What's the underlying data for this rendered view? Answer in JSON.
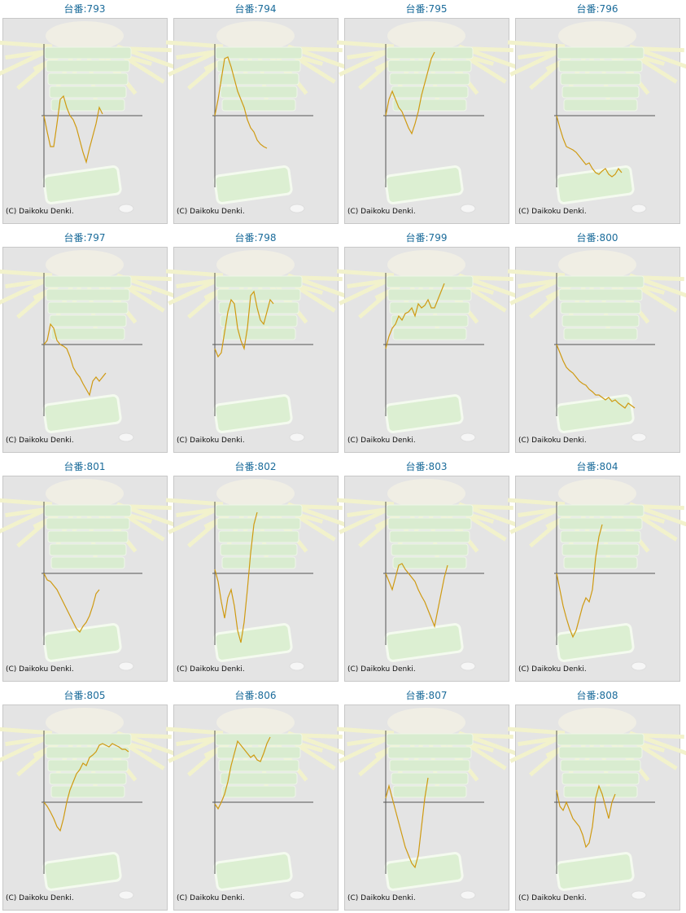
{
  "copyright": "(C) Daikoku Denki.",
  "chart_data": [
    {
      "type": "line",
      "title": "台番:793",
      "color": "#cf9a12",
      "ylim": [
        -88,
        88
      ],
      "values": [
        0,
        -20,
        -38,
        -38,
        -10,
        20,
        24,
        10,
        0,
        -5,
        -15,
        -30,
        -45,
        -57,
        -40,
        -25,
        -10,
        10,
        2
      ]
    },
    {
      "type": "line",
      "title": "台番:794",
      "color": "#cf9a12",
      "ylim": [
        -88,
        88
      ],
      "values": [
        0,
        20,
        45,
        70,
        72,
        60,
        45,
        30,
        20,
        10,
        -5,
        -15,
        -20,
        -30,
        -35,
        -38,
        -40
      ]
    },
    {
      "type": "line",
      "title": "台番:795",
      "color": "#cf9a12",
      "ylim": [
        -88,
        88
      ],
      "values": [
        0,
        20,
        30,
        20,
        10,
        5,
        -5,
        -15,
        -22,
        -10,
        5,
        25,
        40,
        55,
        70,
        78
      ]
    },
    {
      "type": "line",
      "title": "台番:796",
      "color": "#cf9a12",
      "ylim": [
        -88,
        88
      ],
      "values": [
        0,
        -15,
        -28,
        -38,
        -40,
        -42,
        -45,
        -50,
        -55,
        -60,
        -58,
        -65,
        -70,
        -72,
        -68,
        -65,
        -72,
        -75,
        -72,
        -65,
        -70
      ]
    },
    {
      "type": "line",
      "title": "台番:797",
      "color": "#cf9a12",
      "ylim": [
        -88,
        88
      ],
      "values": [
        0,
        5,
        25,
        20,
        5,
        0,
        -2,
        -5,
        -15,
        -28,
        -35,
        -40,
        -48,
        -55,
        -62,
        -45,
        -40,
        -45,
        -40,
        -35
      ]
    },
    {
      "type": "line",
      "title": "台番:798",
      "color": "#cf9a12",
      "ylim": [
        -88,
        88
      ],
      "values": [
        -5,
        -15,
        -10,
        15,
        40,
        55,
        50,
        20,
        5,
        -5,
        20,
        60,
        65,
        45,
        30,
        25,
        40,
        55,
        50
      ]
    },
    {
      "type": "line",
      "title": "台番:799",
      "color": "#cf9a12",
      "ylim": [
        -88,
        88
      ],
      "values": [
        -5,
        10,
        20,
        25,
        35,
        30,
        38,
        40,
        45,
        35,
        50,
        45,
        48,
        55,
        45,
        45,
        55,
        65,
        75
      ]
    },
    {
      "type": "line",
      "title": "台番:800",
      "color": "#cf9a12",
      "ylim": [
        -88,
        88
      ],
      "values": [
        0,
        -10,
        -20,
        -28,
        -32,
        -35,
        -40,
        -45,
        -48,
        -50,
        -55,
        -58,
        -62,
        -62,
        -65,
        -68,
        -65,
        -70,
        -68,
        -72,
        -75,
        -78,
        -72,
        -75,
        -78
      ]
    },
    {
      "type": "line",
      "title": "台番:801",
      "color": "#cf9a12",
      "ylim": [
        -88,
        88
      ],
      "values": [
        0,
        -8,
        -10,
        -15,
        -20,
        -28,
        -36,
        -44,
        -52,
        -60,
        -68,
        -72,
        -65,
        -60,
        -52,
        -40,
        -25,
        -20
      ]
    },
    {
      "type": "line",
      "title": "台番:802",
      "color": "#cf9a12",
      "ylim": [
        -88,
        88
      ],
      "values": [
        5,
        -10,
        -35,
        -55,
        -30,
        -20,
        -40,
        -70,
        -85,
        -60,
        -20,
        25,
        60,
        75
      ]
    },
    {
      "type": "line",
      "title": "台番:803",
      "color": "#cf9a12",
      "ylim": [
        -88,
        88
      ],
      "values": [
        0,
        -10,
        -20,
        -5,
        10,
        12,
        5,
        0,
        -5,
        -10,
        -20,
        -28,
        -35,
        -45,
        -55,
        -65,
        -45,
        -25,
        -5,
        10
      ]
    },
    {
      "type": "line",
      "title": "台番:804",
      "color": "#cf9a12",
      "ylim": [
        -88,
        88
      ],
      "values": [
        0,
        -20,
        -40,
        -55,
        -68,
        -78,
        -70,
        -55,
        -40,
        -30,
        -35,
        -20,
        20,
        45,
        60
      ]
    },
    {
      "type": "line",
      "title": "台番:805",
      "color": "#cf9a12",
      "ylim": [
        -88,
        88
      ],
      "values": [
        0,
        -5,
        -12,
        -20,
        -30,
        -35,
        -20,
        0,
        15,
        25,
        35,
        40,
        48,
        45,
        55,
        58,
        62,
        70,
        72,
        70,
        68,
        72,
        70,
        68,
        65,
        65,
        62
      ]
    },
    {
      "type": "line",
      "title": "台番:806",
      "color": "#cf9a12",
      "ylim": [
        -88,
        88
      ],
      "values": [
        -2,
        -8,
        0,
        10,
        25,
        45,
        60,
        75,
        70,
        65,
        60,
        55,
        58,
        52,
        50,
        60,
        72,
        80
      ]
    },
    {
      "type": "line",
      "title": "台番:807",
      "color": "#cf9a12",
      "ylim": [
        -88,
        88
      ],
      "values": [
        5,
        20,
        5,
        -10,
        -25,
        -40,
        -55,
        -65,
        -75,
        -80,
        -65,
        -30,
        5,
        30
      ]
    },
    {
      "type": "line",
      "title": "台番:808",
      "color": "#cf9a12",
      "ylim": [
        -88,
        88
      ],
      "values": [
        15,
        -5,
        -10,
        0,
        -10,
        -20,
        -25,
        -30,
        -40,
        -55,
        -50,
        -30,
        5,
        20,
        10,
        -5,
        -20,
        0,
        10
      ]
    }
  ]
}
